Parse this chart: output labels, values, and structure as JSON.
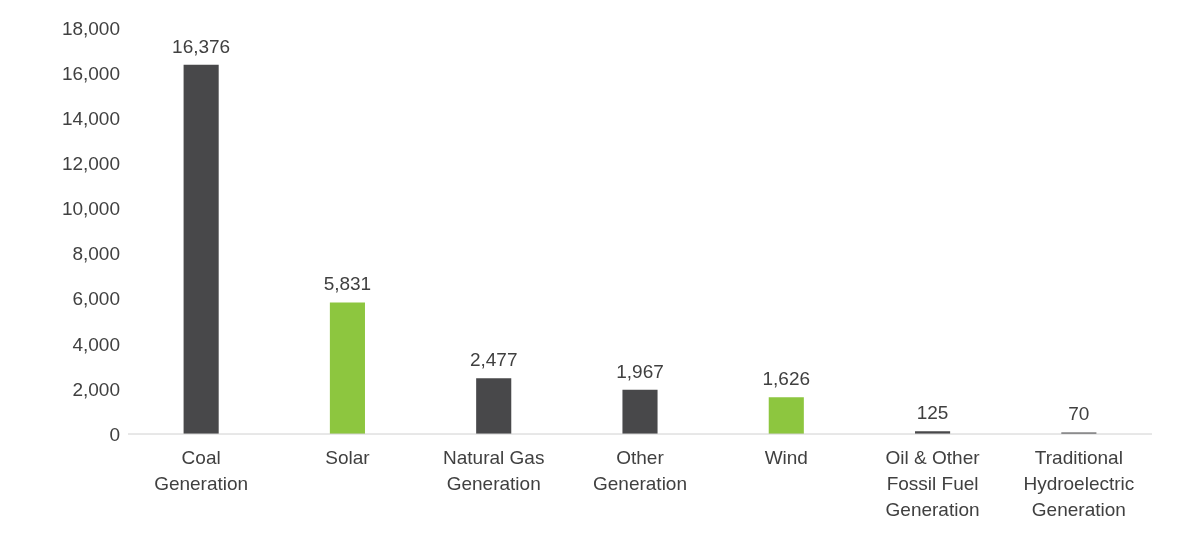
{
  "chart_data": {
    "type": "bar",
    "categories": [
      "Coal Generation",
      "Solar",
      "Natural Gas Generation",
      "Other Generation",
      "Wind",
      "Oil & Other Fossil Fuel Generation",
      "Traditional Hydroelectric Generation"
    ],
    "values": [
      16376,
      5831,
      2477,
      1967,
      1626,
      125,
      70
    ],
    "colors": [
      "#48484a",
      "#8dc63f",
      "#48484a",
      "#48484a",
      "#8dc63f",
      "#48484a",
      "#48484a"
    ],
    "ylim": [
      0,
      18000
    ],
    "yticks": [
      {
        "value": 0,
        "label": "0"
      },
      {
        "value": 2000,
        "label": "2,000"
      },
      {
        "value": 4000,
        "label": "4,000"
      },
      {
        "value": 6000,
        "label": "6,000"
      },
      {
        "value": 8000,
        "label": "8,000"
      },
      {
        "value": 10000,
        "label": "10,000"
      },
      {
        "value": 12000,
        "label": "12,000"
      },
      {
        "value": 14000,
        "label": "14,000"
      },
      {
        "value": 16000,
        "label": "16,000"
      },
      {
        "value": 18000,
        "label": "18,000"
      }
    ],
    "value_labels": [
      "16,376",
      "5,831",
      "2,477",
      "1,967",
      "1,626",
      "125",
      "70"
    ],
    "grid": false,
    "legend": false
  }
}
